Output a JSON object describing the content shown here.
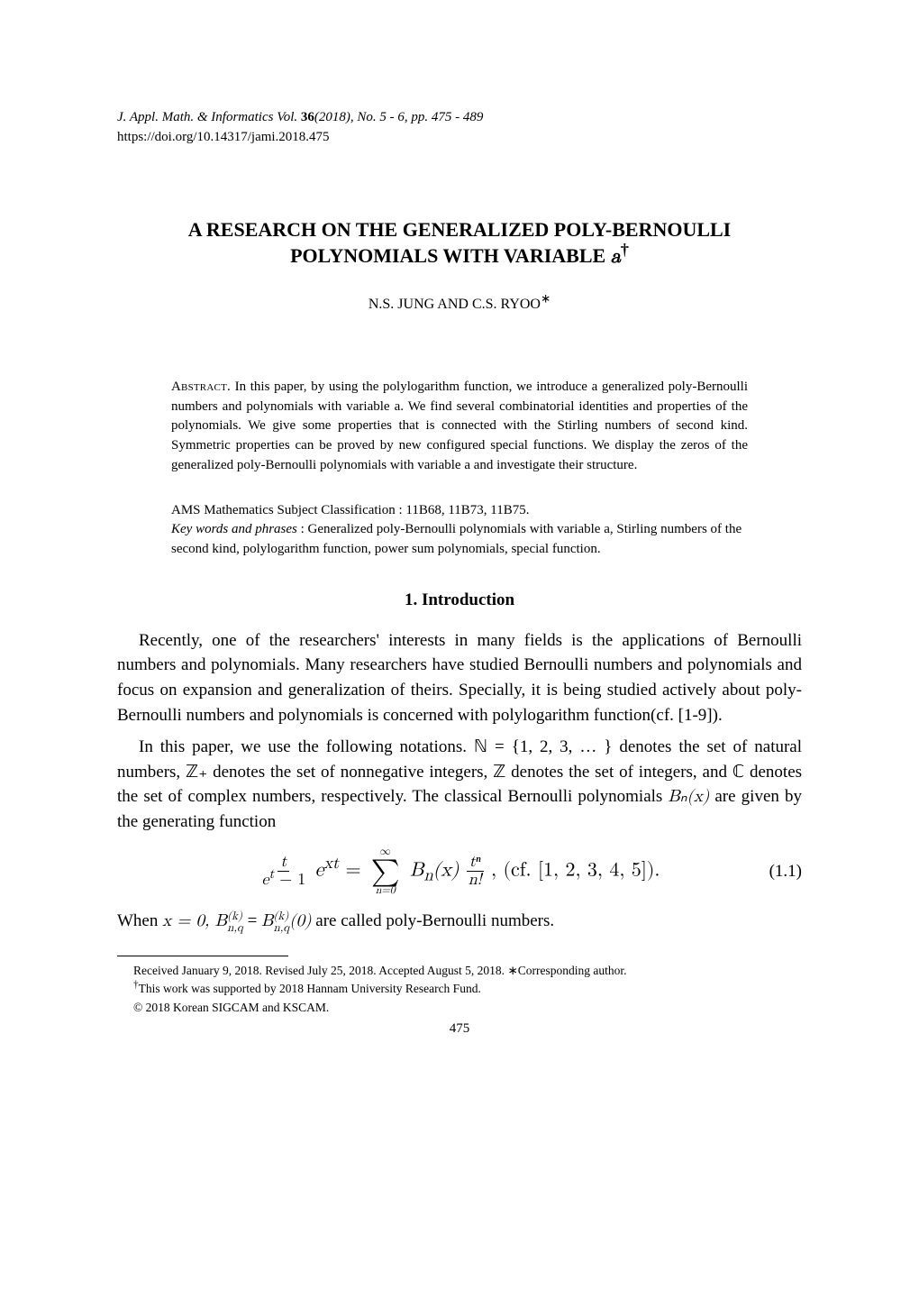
{
  "journal": {
    "title_line_italic_prefix": "J. Appl. Math. & Informatics Vol. ",
    "volume": "36",
    "issue_pages_italic": "(2018), No. 5 - 6, pp. 475 - 489",
    "doi": "https://doi.org/10.14317/jami.2018.475"
  },
  "paper": {
    "title_line1": "A RESEARCH ON THE GENERALIZED POLY-BERNOULLI",
    "title_line2": "POLYNOMIALS WITH VARIABLE ",
    "title_var": "a",
    "title_dagger": "†",
    "authors": "N.S. JUNG AND C.S. RYOO",
    "author_star": "∗"
  },
  "abstract": {
    "label": "Abstract.",
    "text": "In this paper, by using the polylogarithm function, we introduce a generalized poly-Bernoulli numbers and polynomials with variable a. We find several combinatorial identities and properties of the polynomials. We give some properties that is connected with the Stirling numbers of second kind. Symmetric properties can be proved by new configured special functions. We display the zeros of the generalized poly-Bernoulli polynomials with variable a and investigate their structure."
  },
  "ams": {
    "line": "AMS Mathematics Subject Classification : 11B68, 11B73, 11B75."
  },
  "keywords": {
    "label": "Key words and phrases",
    "text": " : Generalized poly-Bernoulli polynomials with variable a, Stirling numbers of the second kind, polylogarithm function, power sum polynomials, special function."
  },
  "section1": {
    "heading": "1. Introduction",
    "para1": "Recently, one of the researchers' interests in many fields is the applications of Bernoulli numbers and polynomials. Many researchers have studied Bernoulli numbers and polynomials and focus on expansion and generalization of theirs. Specially, it is being studied actively about poly-Bernoulli numbers and polynomials is concerned with polylogarithm function(cf. [1-9]).",
    "para2a": "In this paper, we use the following notations. ",
    "nat_set": "ℕ = {1, 2, 3, … }",
    "para2b": " denotes the set of natural numbers, ",
    "zplus": "ℤ₊",
    "para2c": " denotes the set of nonnegative integers, ",
    "zset": "ℤ",
    "para2d": " denotes the set of integers, and ",
    "cset": "ℂ",
    "para2e": " denotes the set of complex numbers, respectively. The classical Bernoulli polynomials ",
    "bnx": "Bₙ(x)",
    "para2f": " are given by the generating function"
  },
  "equation": {
    "frac_num": "t",
    "frac_den_l": "e",
    "frac_den_exp": "t",
    "frac_den_r": " − 1",
    "e": "e",
    "e_exp": "xt",
    "eq": " = ",
    "sum_top": "∞",
    "sum_bottom": "n=0",
    "Bn": "B",
    "Bn_sub": "n",
    "Bn_arg": "(x)",
    "frac2_num": "tⁿ",
    "frac2_den": "n!",
    "cf": ",     (cf. [1, 2, 3, 4, 5]).",
    "number": "(1.1)"
  },
  "after_eq": {
    "prefix": "When ",
    "x0": "x = 0, ",
    "B1": "B",
    "B1_super": "(k)",
    "B1_sub": "n,q",
    "eq": " = ",
    "B2": "B",
    "B2_super": "(k)",
    "B2_sub": "n,q",
    "B2_arg": "(0)",
    "suffix": " are called poly-Bernoulli numbers."
  },
  "footnotes": {
    "received": "Received January 9, 2018. Revised July 25, 2018. Accepted August 5, 2018.   ",
    "corresponding": "∗Corresponding author.",
    "dagger": "†",
    "funding": "This work was supported by 2018 Hannam University Research Fund.",
    "copyright": "© 2018 Korean SIGCAM and KSCAM."
  },
  "page_number": "475"
}
